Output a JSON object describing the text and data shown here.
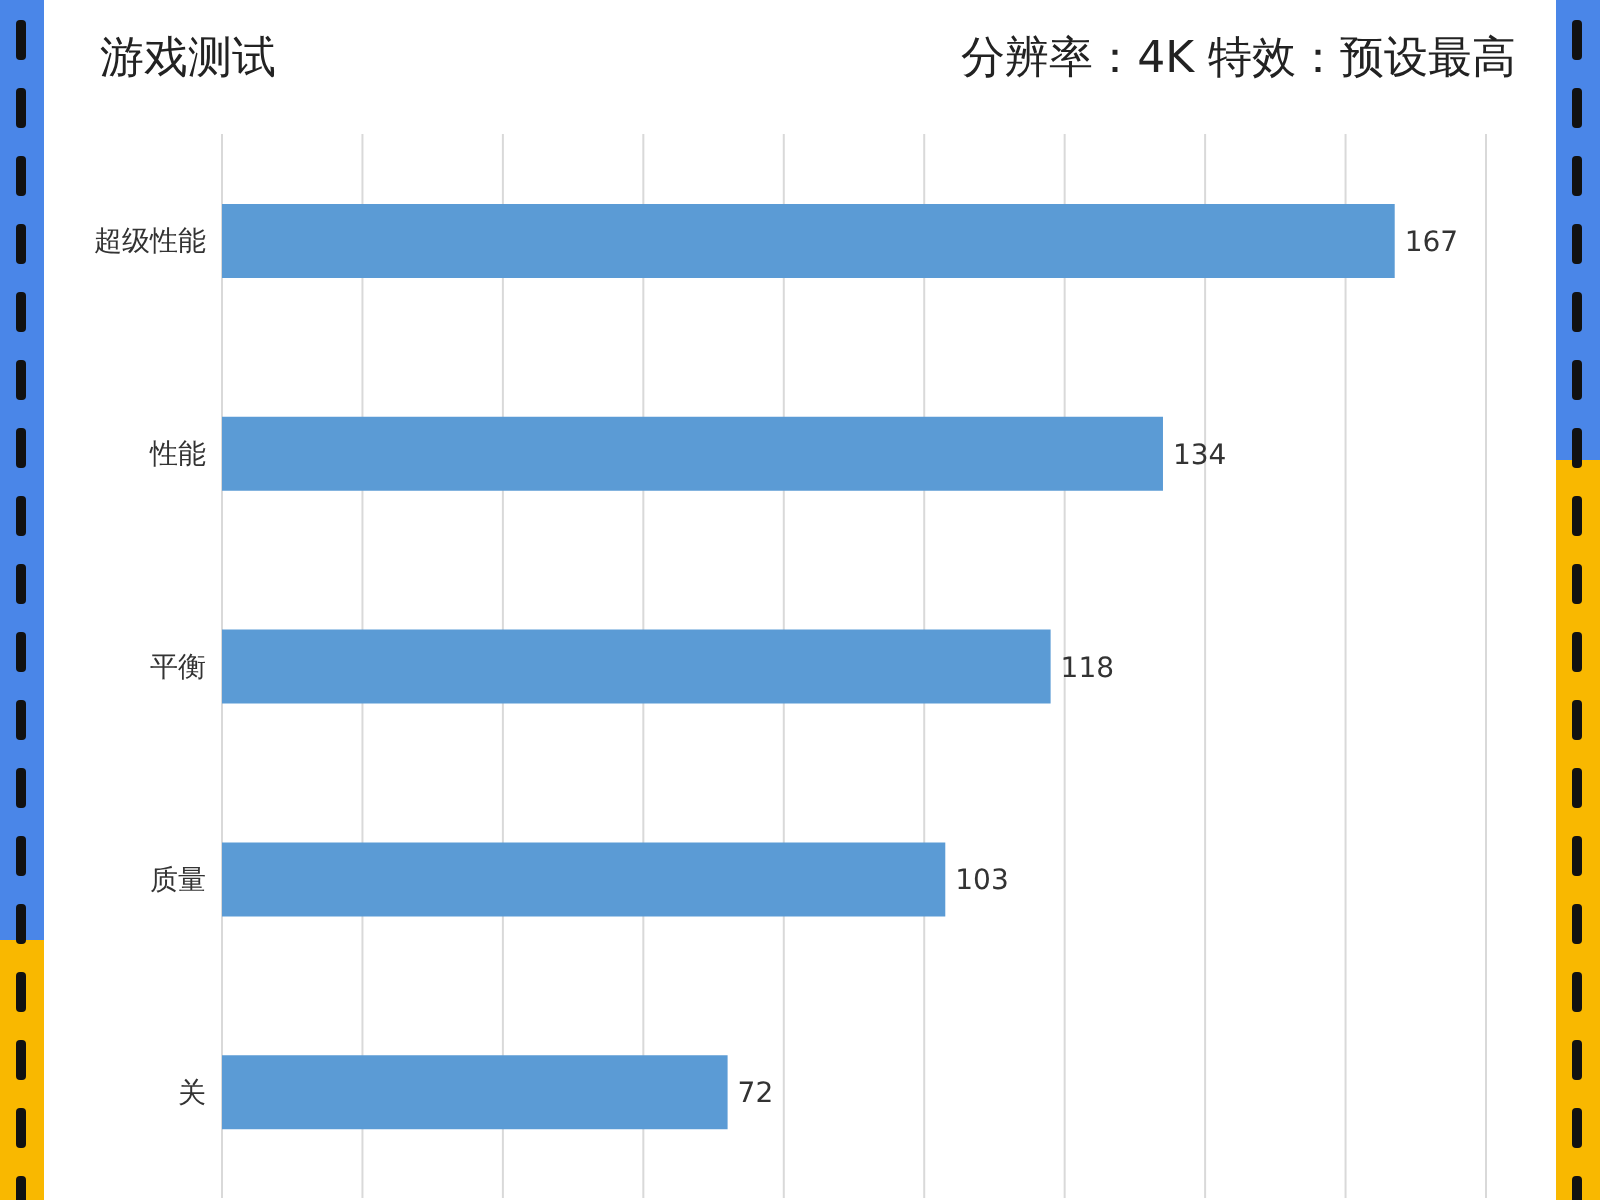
{
  "chart_data": {
    "type": "bar",
    "title": "游戏测试",
    "subtitle": "分辨率：4K 特效：预设最高",
    "orientation": "horizontal",
    "categories": [
      "超级性能",
      "性能",
      "平衡",
      "质量",
      "关"
    ],
    "values": [
      167,
      134,
      118,
      103,
      72
    ],
    "color": "#5b9bd5",
    "xlim": [
      0,
      180
    ],
    "xticks": [
      {
        "value": 0,
        "label": null
      },
      {
        "value": 20,
        "label": null
      },
      {
        "value": 40,
        "label": null
      },
      {
        "value": 60,
        "label": null
      },
      {
        "value": 80,
        "label": null
      },
      {
        "value": 100,
        "label": null
      },
      {
        "value": 120,
        "label": null
      },
      {
        "value": 140,
        "label": null
      },
      {
        "value": 160,
        "label": null
      },
      {
        "value": 180,
        "label": null
      }
    ],
    "grid": "x",
    "data_labels": true,
    "tick_labels": "y"
  }
}
